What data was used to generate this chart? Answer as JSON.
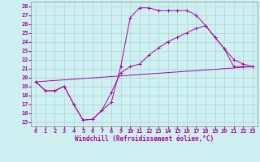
{
  "bg_color": "#cff0f0",
  "grid_color": "#b0d4d4",
  "line_color": "#aa00aa",
  "xlim": [
    -0.5,
    23.5
  ],
  "ylim": [
    14.5,
    28.5
  ],
  "xticks": [
    0,
    1,
    2,
    3,
    4,
    5,
    6,
    7,
    8,
    9,
    10,
    11,
    12,
    13,
    14,
    15,
    16,
    17,
    18,
    19,
    20,
    21,
    22,
    23
  ],
  "yticks": [
    15,
    16,
    17,
    18,
    19,
    20,
    21,
    22,
    23,
    24,
    25,
    26,
    27,
    28
  ],
  "xlabel": "Windchill (Refroidissement éolien,°C)",
  "line1_x": [
    0,
    1,
    2,
    3,
    4,
    5,
    6,
    7,
    8,
    9,
    10,
    11,
    12,
    13,
    14,
    15,
    16,
    17,
    18,
    19,
    20,
    21,
    22,
    23
  ],
  "line1_y": [
    19.5,
    18.5,
    18.5,
    19.0,
    17.0,
    15.2,
    15.3,
    16.3,
    17.2,
    21.2,
    26.7,
    27.8,
    27.8,
    27.5,
    27.5,
    27.5,
    27.5,
    27.0,
    25.8,
    24.5,
    23.2,
    21.2,
    21.2,
    21.2
  ],
  "line2_x": [
    0,
    1,
    2,
    3,
    4,
    5,
    6,
    7,
    8,
    9,
    10,
    11,
    12,
    13,
    14,
    15,
    16,
    17,
    18,
    19,
    20,
    21,
    22,
    23
  ],
  "line2_y": [
    19.5,
    18.5,
    18.5,
    19.0,
    17.0,
    15.2,
    15.3,
    16.3,
    18.3,
    20.5,
    21.2,
    21.5,
    22.5,
    23.3,
    24.0,
    24.5,
    25.0,
    25.5,
    25.8,
    24.5,
    23.2,
    22.0,
    21.5,
    21.2
  ],
  "line3_x": [
    0,
    23
  ],
  "line3_y": [
    19.5,
    21.2
  ],
  "tick_fontsize": 5.0,
  "label_fontsize": 5.5
}
